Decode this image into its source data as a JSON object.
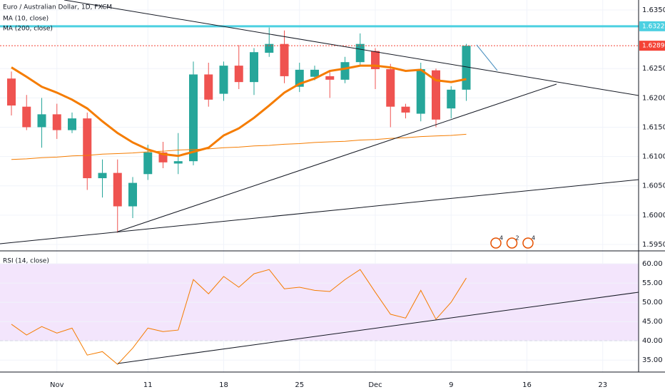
{
  "chart_data": [
    {
      "type": "candlestick",
      "title": "Euro / Australian Dollar, 1D, FXCM",
      "categories": [
        null,
        null,
        null,
        "Nov",
        null,
        null,
        null,
        null,
        null,
        "11",
        null,
        null,
        null,
        null,
        "18",
        null,
        null,
        null,
        null,
        "25",
        null,
        null,
        null,
        null,
        "Dec",
        null,
        null,
        null,
        null,
        "9",
        null,
        null,
        null,
        null,
        "16",
        null,
        null,
        null,
        null,
        "23",
        null,
        null
      ],
      "open": [
        1.6233,
        1.6185,
        1.615,
        1.6172,
        1.6145,
        1.6165,
        1.6063,
        1.6072,
        1.6015,
        1.607,
        1.6107,
        1.6088,
        1.6092,
        1.624,
        1.6207,
        1.6255,
        1.6227,
        1.6277,
        1.6292,
        1.6219,
        1.6236,
        1.6237,
        1.6231,
        1.6261,
        1.628,
        1.6249,
        1.6185,
        1.6173,
        1.6247,
        1.6182,
        1.6214,
        null,
        null,
        null,
        null,
        null,
        null,
        null,
        null,
        null,
        null,
        null
      ],
      "high": [
        1.6245,
        1.6205,
        1.62,
        1.619,
        1.6175,
        1.6175,
        1.6095,
        1.6095,
        1.6065,
        1.612,
        1.6125,
        1.614,
        1.6262,
        1.626,
        1.6262,
        1.629,
        1.6285,
        1.632,
        1.6315,
        1.626,
        1.6255,
        1.6245,
        1.627,
        1.631,
        1.6285,
        1.6258,
        1.619,
        1.626,
        1.625,
        1.622,
        1.6292,
        null,
        null,
        null,
        null,
        null,
        null,
        null,
        null,
        null,
        null,
        null
      ],
      "low": [
        1.617,
        1.6145,
        1.6115,
        1.613,
        1.614,
        1.6043,
        1.603,
        1.597,
        1.5995,
        1.606,
        1.608,
        1.607,
        1.6085,
        1.6185,
        1.6195,
        1.6215,
        1.6205,
        1.627,
        1.6225,
        1.621,
        1.623,
        1.62,
        1.6225,
        1.6255,
        1.6215,
        1.615,
        1.6165,
        1.616,
        1.615,
        1.6165,
        1.6195,
        null,
        null,
        null,
        null,
        null,
        null,
        null,
        null,
        null,
        null,
        null
      ],
      "close": [
        1.6187,
        1.615,
        1.6172,
        1.6145,
        1.6165,
        1.6063,
        1.6072,
        1.6015,
        1.6055,
        1.6107,
        1.609,
        1.6092,
        1.624,
        1.6197,
        1.6255,
        1.6227,
        1.6278,
        1.6292,
        1.6237,
        1.6248,
        1.6248,
        1.6231,
        1.6261,
        1.6292,
        1.6249,
        1.6185,
        1.6175,
        1.6249,
        1.6163,
        1.6214,
        1.6289,
        null,
        null,
        null,
        null,
        null,
        null,
        null,
        null,
        null,
        null,
        null
      ],
      "up_color": "#26a69a",
      "down_color": "#ef5350",
      "series": [
        {
          "name": "MA (10, close)",
          "color": "#f57c00",
          "width": 3,
          "values": [
            1.6252,
            1.6236,
            1.6219,
            1.6209,
            1.6197,
            1.6182,
            1.616,
            1.614,
            1.6124,
            1.6112,
            1.6104,
            1.6101,
            1.6108,
            1.6115,
            1.6136,
            1.6148,
            1.6166,
            1.6187,
            1.6209,
            1.6224,
            1.6233,
            1.6246,
            1.625,
            1.6255,
            1.6255,
            1.6252,
            1.6246,
            1.6248,
            1.623,
            1.6227,
            1.6232,
            null,
            null,
            null,
            null,
            null,
            null,
            null,
            null,
            null,
            null,
            null
          ]
        },
        {
          "name": "MA (200, close)",
          "color": "#f57c00",
          "width": 1,
          "values": [
            1.6095,
            1.6096,
            1.6098,
            1.6099,
            1.6101,
            1.6102,
            1.6104,
            1.6105,
            1.6106,
            1.6108,
            1.6109,
            1.6111,
            1.6112,
            1.6113,
            1.6115,
            1.6116,
            1.6118,
            1.6119,
            1.6121,
            1.6122,
            1.6124,
            1.6125,
            1.6126,
            1.6128,
            1.6129,
            1.6131,
            1.6132,
            1.6134,
            1.6135,
            1.6136,
            1.6138,
            null,
            null,
            null,
            null,
            null,
            null,
            null,
            null,
            null,
            null,
            null
          ]
        }
      ],
      "levels": [
        {
          "value": 1.63222,
          "label": "1.63222",
          "color": "#4dd0e1"
        },
        {
          "value": 1.6289,
          "label": "1.62890",
          "color": "#f44336"
        }
      ],
      "events": [
        4,
        2,
        4
      ],
      "ylim": [
        1.5939,
        1.6367
      ],
      "yticks": [
        {
          "value": 1.635,
          "label": "1.63500"
        },
        {
          "value": 1.625,
          "label": "1.62500"
        },
        {
          "value": 1.62,
          "label": "1.62000"
        },
        {
          "value": 1.615,
          "label": "1.61500"
        },
        {
          "value": 1.61,
          "label": "1.61000"
        },
        {
          "value": 1.605,
          "label": "1.60500"
        },
        {
          "value": 1.6,
          "label": "1.60000"
        },
        {
          "value": 1.595,
          "label": "1.59500"
        }
      ],
      "grid": true
    },
    {
      "type": "line",
      "title": "RSI (14, close)",
      "series": [
        {
          "name": "RSI",
          "color": "#f57c00",
          "values": [
            44.3,
            41.5,
            43.7,
            42.0,
            43.3,
            36.3,
            37.2,
            33.9,
            38.1,
            43.3,
            42.4,
            42.8,
            55.9,
            52.2,
            56.7,
            53.9,
            57.4,
            58.5,
            53.5,
            53.9,
            53.1,
            52.8,
            55.9,
            58.5,
            52.6,
            46.9,
            45.9,
            53.1,
            45.6,
            50.0,
            56.3,
            null,
            null,
            null,
            null,
            null,
            null,
            null,
            null,
            null,
            null,
            null
          ]
        }
      ],
      "band": [
        40,
        60
      ],
      "band_color": "#f3e5fc",
      "ylim": [
        31.9,
        62.6
      ],
      "yticks": [
        {
          "value": 60,
          "label": "60.00"
        },
        {
          "value": 55,
          "label": "55.00"
        },
        {
          "value": 50,
          "label": "50.00"
        },
        {
          "value": 45,
          "label": "45.00"
        },
        {
          "value": 40,
          "label": "40.00"
        },
        {
          "value": 35,
          "label": "35.00"
        }
      ],
      "grid": true
    }
  ]
}
